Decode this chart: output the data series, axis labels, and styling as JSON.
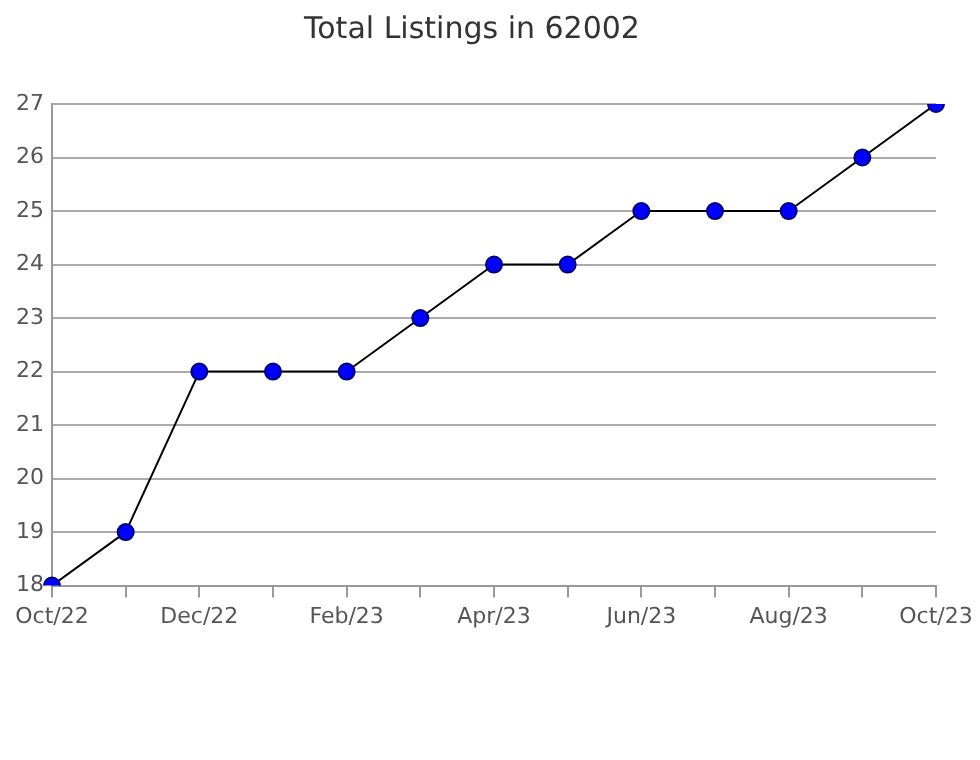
{
  "chart_data": {
    "type": "line",
    "title": "Total Listings in 62002",
    "categories": [
      "Oct/22",
      null,
      "Dec/22",
      null,
      "Feb/23",
      null,
      "Apr/23",
      null,
      "Jun/23",
      null,
      "Aug/23",
      null,
      "Oct/23"
    ],
    "series": [
      {
        "color": "#0000ff",
        "values": [
          18,
          19,
          22,
          22,
          22,
          23,
          24,
          24,
          25,
          25,
          25,
          26,
          27
        ]
      }
    ],
    "ylim": [
      18,
      27
    ],
    "yticks": [
      18,
      19,
      20,
      21,
      22,
      23,
      24,
      25,
      26,
      27
    ],
    "grid": "y",
    "marker": "circle",
    "line_style": "solid",
    "legend": false
  }
}
